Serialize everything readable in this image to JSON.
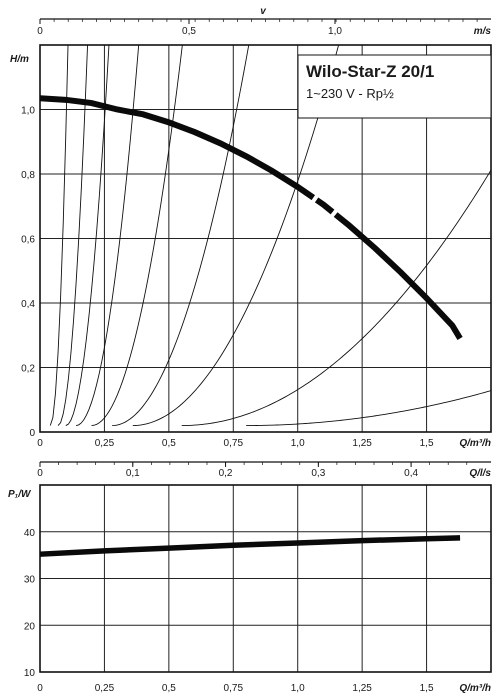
{
  "chart_data": [
    {
      "type": "line",
      "title": "Wilo-Star-Z 20/1",
      "subtitle": "1~230 V - Rp½",
      "ylabel": "H/m",
      "xlabel": "Q/m³/h",
      "top_axis_symbol": "v",
      "top_axis_unit": "m/s",
      "xlim": [
        0,
        1.75
      ],
      "ylim": [
        0,
        1.2
      ],
      "x_ticks": [
        "0",
        "0,25",
        "0,5",
        "0,75",
        "1,0",
        "1,25",
        "1,5"
      ],
      "y_ticks": [
        "0",
        "0,2",
        "0,4",
        "0,6",
        "0,8",
        "1,0"
      ],
      "top_ticks": [
        "0",
        "0,5",
        "1,0"
      ],
      "series": [
        {
          "x": [
            0,
            0.1,
            0.2,
            0.3,
            0.4,
            0.5,
            0.6,
            0.7,
            0.8,
            0.9,
            1.0,
            1.1,
            1.2,
            1.3,
            1.4,
            1.5,
            1.6,
            1.63
          ],
          "values": [
            1.035,
            1.03,
            1.02,
            1.0,
            0.985,
            0.96,
            0.93,
            0.895,
            0.855,
            0.81,
            0.76,
            0.705,
            0.64,
            0.57,
            0.495,
            0.415,
            0.33,
            0.29
          ]
        }
      ],
      "system_curves_k": [
        250,
        90,
        42,
        20,
        9.5,
        4.2,
        1.85,
        0.55,
        0.12
      ]
    },
    {
      "type": "line",
      "ylabel": "P₁/W",
      "xlabel": "Q/m³/h",
      "xlim": [
        0,
        1.75
      ],
      "ylim": [
        10,
        50
      ],
      "x_ticks": [
        "0",
        "0,25",
        "0,5",
        "0,75",
        "1,0",
        "1,25",
        "1,5"
      ],
      "y_ticks": [
        "10",
        "20",
        "30",
        "40"
      ],
      "top_axis_unit": "Q/l/s",
      "top_ticks": [
        "0",
        "0,1",
        "0,2",
        "0,3",
        "0,4"
      ],
      "series": [
        {
          "x": [
            0,
            0.25,
            0.5,
            0.75,
            1.0,
            1.25,
            1.5,
            1.63
          ],
          "values": [
            35.2,
            35.9,
            36.5,
            37.1,
            37.6,
            38.1,
            38.5,
            38.7
          ]
        }
      ]
    }
  ]
}
